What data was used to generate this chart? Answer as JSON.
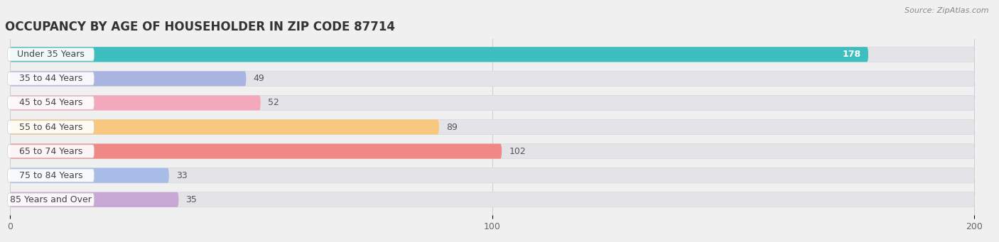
{
  "title": "OCCUPANCY BY AGE OF HOUSEHOLDER IN ZIP CODE 87714",
  "source": "Source: ZipAtlas.com",
  "categories": [
    "Under 35 Years",
    "35 to 44 Years",
    "45 to 54 Years",
    "55 to 64 Years",
    "65 to 74 Years",
    "75 to 84 Years",
    "85 Years and Over"
  ],
  "values": [
    178,
    49,
    52,
    89,
    102,
    33,
    35
  ],
  "bar_colors": [
    "#3dbfbf",
    "#aab4e0",
    "#f4a8bc",
    "#f9c880",
    "#f08888",
    "#a8bce8",
    "#c8a8d4"
  ],
  "background_color": "#f0f0f0",
  "bar_bg_color": "#e4e4e8",
  "label_bg_color": "#f8f8f8",
  "xlim": [
    0,
    200
  ],
  "xticks": [
    0,
    100,
    200
  ],
  "title_fontsize": 12,
  "label_fontsize": 9,
  "value_fontsize": 9,
  "bar_height": 0.62,
  "bar_gap": 0.38
}
